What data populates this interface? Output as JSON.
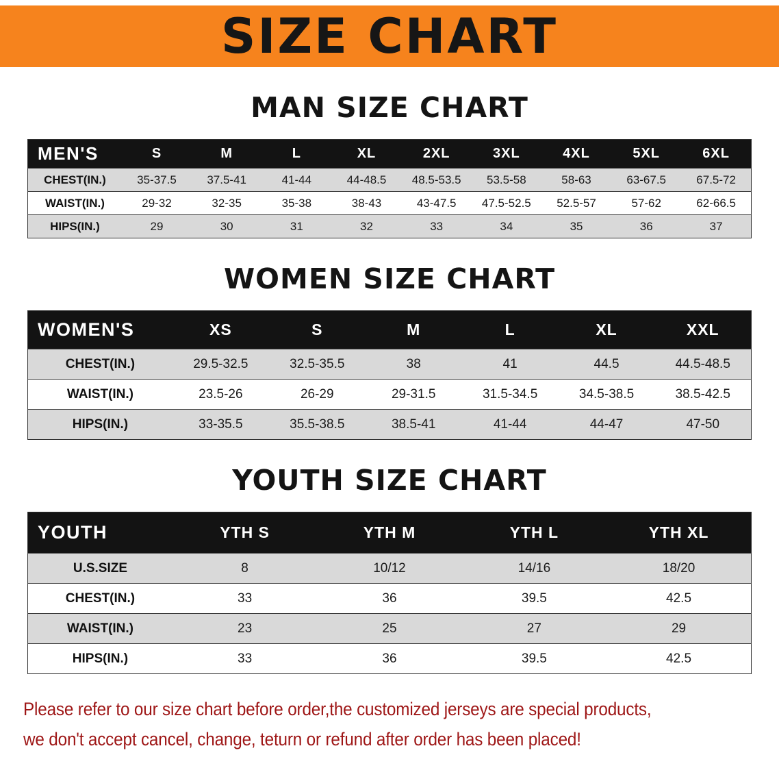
{
  "colors": {
    "body_bg": "#ffffff",
    "text": "#111111",
    "banner_bg": "#f6831d",
    "banner_text": "#161616",
    "table_header_bg": "#131313",
    "table_header_text": "#ffffff",
    "row_alt_bg": "#d9d9d9",
    "footer_text": "#9e1616"
  },
  "banner": {
    "title": "SIZE CHART"
  },
  "sections": [
    {
      "heading": "MAN SIZE CHART",
      "table": {
        "header": [
          "MEN'S",
          "S",
          "M",
          "L",
          "XL",
          "2XL",
          "3XL",
          "4XL",
          "5XL",
          "6XL"
        ],
        "rows": [
          [
            "CHEST(IN.)",
            "35-37.5",
            "37.5-41",
            "41-44",
            "44-48.5",
            "48.5-53.5",
            "53.5-58",
            "58-63",
            "63-67.5",
            "67.5-72"
          ],
          [
            "WAIST(IN.)",
            "29-32",
            "32-35",
            "35-38",
            "38-43",
            "43-47.5",
            "47.5-52.5",
            "52.5-57",
            "57-62",
            "62-66.5"
          ],
          [
            "HIPS(IN.)",
            "29",
            "30",
            "31",
            "32",
            "33",
            "34",
            "35",
            "36",
            "37"
          ]
        ]
      }
    },
    {
      "heading": "WOMEN SIZE CHART",
      "table": {
        "header": [
          "WOMEN'S",
          "XS",
          "S",
          "M",
          "L",
          "XL",
          "XXL"
        ],
        "rows": [
          [
            "CHEST(IN.)",
            "29.5-32.5",
            "32.5-35.5",
            "38",
            "41",
            "44.5",
            "44.5-48.5"
          ],
          [
            "WAIST(IN.)",
            "23.5-26",
            "26-29",
            "29-31.5",
            "31.5-34.5",
            "34.5-38.5",
            "38.5-42.5"
          ],
          [
            "HIPS(IN.)",
            "33-35.5",
            "35.5-38.5",
            "38.5-41",
            "41-44",
            "44-47",
            "47-50"
          ]
        ]
      }
    },
    {
      "heading": "YOUTH SIZE CHART",
      "table": {
        "header": [
          "YOUTH",
          "YTH S",
          "YTH M",
          "YTH L",
          "YTH XL"
        ],
        "rows": [
          [
            "U.S.SIZE",
            "8",
            "10/12",
            "14/16",
            "18/20"
          ],
          [
            "CHEST(IN.)",
            "33",
            "36",
            "39.5",
            "42.5"
          ],
          [
            "WAIST(IN.)",
            "23",
            "25",
            "27",
            "29"
          ],
          [
            "HIPS(IN.)",
            "33",
            "36",
            "39.5",
            "42.5"
          ]
        ]
      }
    }
  ],
  "footer": {
    "line1": "Please refer to our size chart before order,the customized jerseys are special products,",
    "line2": "we don't accept cancel, change, teturn or refund after order has been placed!"
  }
}
